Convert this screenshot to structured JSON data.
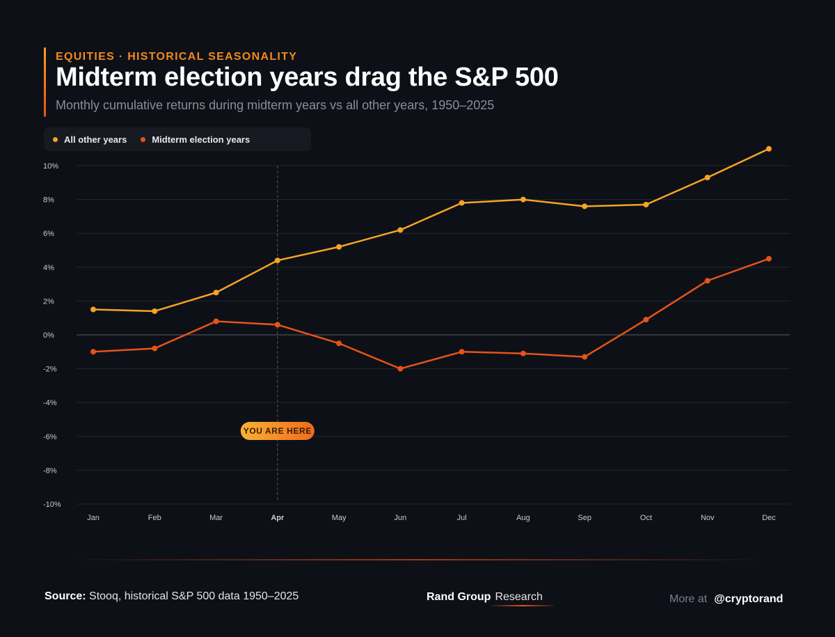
{
  "header": {
    "kicker": "EQUITIES · HISTORICAL SEASONALITY",
    "title": "Midterm election years drag the S&P 500",
    "subtitle": "Monthly cumulative returns during midterm years vs all other years, 1950–2025"
  },
  "colors": {
    "background": "#0e1017",
    "other_years": "#f5a524",
    "midterm_years": "#e6531a",
    "grid": "#23262e",
    "zero_line": "#5a5d66"
  },
  "annotation": {
    "label": "YOU ARE HERE",
    "month": "Apr"
  },
  "chart_data": {
    "type": "line",
    "title": "Midterm election years drag the S&P 500",
    "xlabel": "",
    "ylabel": "",
    "categories": [
      "Jan",
      "Feb",
      "Mar",
      "Apr",
      "May",
      "Jun",
      "Jul",
      "Aug",
      "Sep",
      "Oct",
      "Nov",
      "Dec"
    ],
    "highlight_category": "Apr",
    "ylim": [
      -10,
      10
    ],
    "yticks": [
      10,
      8,
      6,
      4,
      2,
      0,
      -2,
      -4,
      -6,
      -8,
      -10
    ],
    "ytick_labels": [
      "10%",
      "8%",
      "6%",
      "4%",
      "2%",
      "0%",
      "-2%",
      "-4%",
      "-6%",
      "-8%",
      "-10%"
    ],
    "grid": true,
    "legend": "top-left",
    "series": [
      {
        "name": "All other years",
        "values": [
          1.5,
          1.4,
          2.5,
          4.4,
          5.2,
          6.2,
          7.8,
          8.0,
          7.6,
          7.7,
          9.3,
          11.0
        ]
      },
      {
        "name": "Midterm election years",
        "values": [
          -1.0,
          -0.8,
          0.8,
          0.6,
          -0.5,
          -2.0,
          -1.0,
          -1.1,
          -1.3,
          0.9,
          3.2,
          4.5
        ]
      }
    ]
  },
  "footer": {
    "source_label": "Source:",
    "source_text": " Stooq, historical S&P 500 data 1950–2025",
    "brand_main": "Rand Group",
    "brand_sub": "Research",
    "more_label": "More at",
    "handle": "@cryptorand"
  }
}
